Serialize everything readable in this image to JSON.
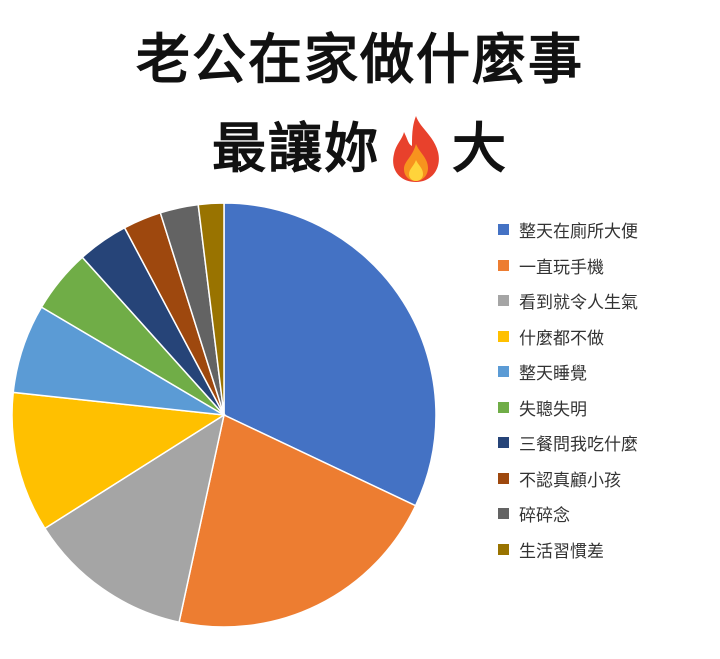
{
  "title": {
    "line1": "老公在家做什麼事",
    "line2_before_icon": "最讓妳",
    "line2_icon": "fire-icon",
    "line2_after_icon": "大"
  },
  "chart_data": {
    "type": "pie",
    "title": "老公在家做什麼事最讓妳🔥大",
    "legend_position": "right",
    "categories": [
      "整天在廁所大便",
      "一直玩手機",
      "看到就令人生氣",
      "什麼都不做",
      "整天睡覺",
      "失聰失明",
      "三餐問我吃什麼",
      "不認真顧小孩",
      "碎碎念",
      "生活習慣差"
    ],
    "values": [
      33,
      22,
      13,
      11,
      7,
      5,
      4,
      3,
      3,
      2
    ],
    "colors": [
      "#4472C4",
      "#ED7D31",
      "#A5A5A5",
      "#FFC000",
      "#5B9BD5",
      "#70AD47",
      "#264478",
      "#9E480E",
      "#636363",
      "#997300"
    ]
  }
}
